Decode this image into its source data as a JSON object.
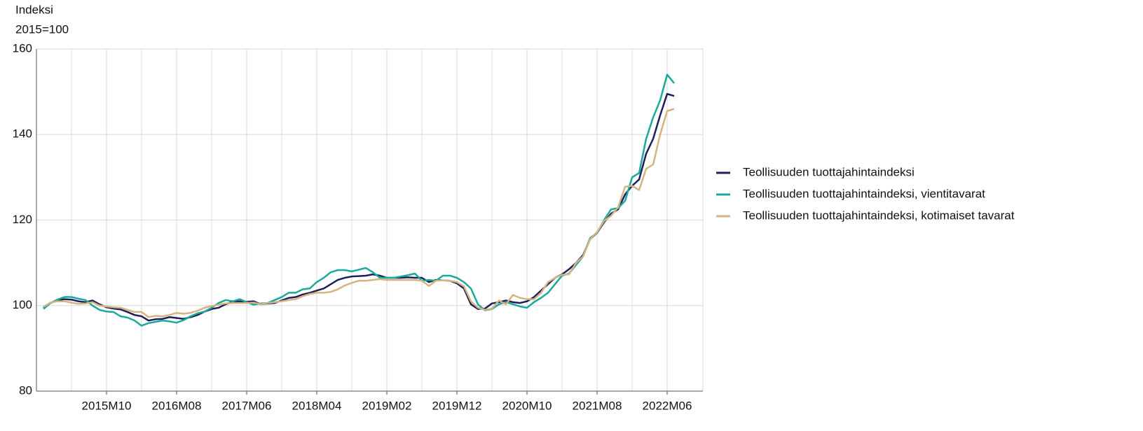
{
  "chart_data": {
    "type": "line",
    "y_label_lines": [
      "Indeksi",
      "2015=100"
    ],
    "categories": [
      null,
      null,
      null,
      null,
      null,
      null,
      null,
      null,
      null,
      "2015M10",
      null,
      null,
      null,
      null,
      null,
      null,
      null,
      null,
      null,
      "2016M08",
      null,
      null,
      null,
      null,
      null,
      null,
      null,
      null,
      null,
      "2017M06",
      null,
      null,
      null,
      null,
      null,
      null,
      null,
      null,
      null,
      "2018M04",
      null,
      null,
      null,
      null,
      null,
      null,
      null,
      null,
      null,
      "2019M02",
      null,
      null,
      null,
      null,
      null,
      null,
      null,
      null,
      null,
      "2019M12",
      null,
      null,
      null,
      null,
      null,
      null,
      null,
      null,
      null,
      "2020M10",
      null,
      null,
      null,
      null,
      null,
      null,
      null,
      null,
      null,
      "2021M08",
      null,
      null,
      null,
      null,
      null,
      null,
      null,
      null,
      null,
      "2022M06",
      null
    ],
    "series": [
      {
        "name": "Teollisuuden tuottajahintaindeksi",
        "color": "#1f1f5e",
        "values": [
          99.5,
          100.6,
          101.2,
          101.5,
          101.4,
          101,
          100.8,
          101.2,
          100.3,
          99.6,
          99.3,
          99.1,
          98.5,
          97.8,
          97.5,
          96.5,
          96.8,
          96.9,
          97.3,
          97.1,
          96.9,
          97.3,
          97.8,
          98.6,
          99.2,
          99.5,
          100.3,
          100.9,
          101,
          100.9,
          101,
          100.3,
          100.5,
          100.6,
          101.2,
          101.8,
          102,
          102.6,
          103,
          103.5,
          104,
          105,
          106,
          106.5,
          106.8,
          106.9,
          107,
          107.3,
          107,
          106.5,
          106.5,
          106.5,
          106.6,
          106.5,
          106.5,
          105.5,
          106,
          105.9,
          105.8,
          105.2,
          104,
          100.3,
          99.2,
          99.3,
          100.5,
          100.8,
          101.2,
          100.8,
          100.6,
          101,
          102,
          103.5,
          105,
          106.5,
          107.3,
          108.5,
          110,
          111.8,
          115.5,
          117,
          119.5,
          121.5,
          122.5,
          126,
          128,
          129.5,
          135.5,
          139,
          144.5,
          149.5,
          149
        ]
      },
      {
        "name": "Teollisuuden tuottajahintaindeksi, vientitavarat",
        "color": "#1aa99b",
        "values": [
          99.2,
          100.6,
          101.4,
          102,
          102,
          101.6,
          101.3,
          100,
          99,
          98.6,
          98.5,
          97.5,
          97.2,
          96.5,
          95.3,
          95.9,
          96.2,
          96.5,
          96.3,
          96,
          96.6,
          97.5,
          98.2,
          98.6,
          99.5,
          100.6,
          101.3,
          101,
          101.5,
          100.8,
          100.2,
          100.5,
          100.6,
          101.3,
          102,
          103,
          103,
          103.8,
          104,
          105.5,
          106.5,
          107.8,
          108.3,
          108.3,
          108,
          108.4,
          108.8,
          107.8,
          106.5,
          106.5,
          106.5,
          106.8,
          107.1,
          107.5,
          105.8,
          106,
          105.8,
          107,
          107,
          106.5,
          105.5,
          104,
          100.3,
          98.9,
          99.2,
          100.3,
          100.8,
          100.3,
          99.8,
          99.5,
          100.8,
          101.8,
          103,
          105,
          107,
          107.5,
          109.5,
          111.5,
          115.8,
          117,
          120,
          122.5,
          122.8,
          124.5,
          130,
          131,
          139,
          144,
          148,
          154,
          152
        ]
      },
      {
        "name": "Teollisuuden tuottajahintaindeksi, kotimaiset tavarat",
        "color": "#d4b483",
        "values": [
          99.7,
          100.7,
          101,
          101,
          100.7,
          100.4,
          100.5,
          100.8,
          100,
          99.8,
          99.6,
          99.5,
          99,
          98.5,
          98.5,
          97.3,
          97.6,
          97.5,
          97.8,
          98.3,
          98.1,
          98.3,
          98.8,
          99.5,
          99.9,
          100.2,
          100.5,
          100.6,
          100.6,
          100.6,
          100.7,
          100.3,
          100.6,
          100.8,
          101,
          101.3,
          101.5,
          102.2,
          102.7,
          103,
          103,
          103.2,
          103.8,
          104.7,
          105.3,
          105.8,
          105.8,
          106,
          106.2,
          106,
          106,
          106,
          106,
          106,
          105.8,
          104.6,
          105.8,
          105.9,
          105.8,
          105.5,
          104.5,
          101,
          99.5,
          99,
          99.3,
          101.2,
          100.3,
          102.5,
          101.8,
          101.5,
          101.5,
          103,
          105.5,
          106.5,
          107.2,
          107.3,
          110,
          111.5,
          115.5,
          117.2,
          119.8,
          121,
          123,
          127.8,
          128,
          127,
          132,
          133,
          140,
          145.5,
          146
        ]
      }
    ],
    "ylim": [
      80,
      160
    ],
    "yticks": [
      80,
      100,
      120,
      140,
      160
    ],
    "grid": true,
    "legend": "right"
  }
}
